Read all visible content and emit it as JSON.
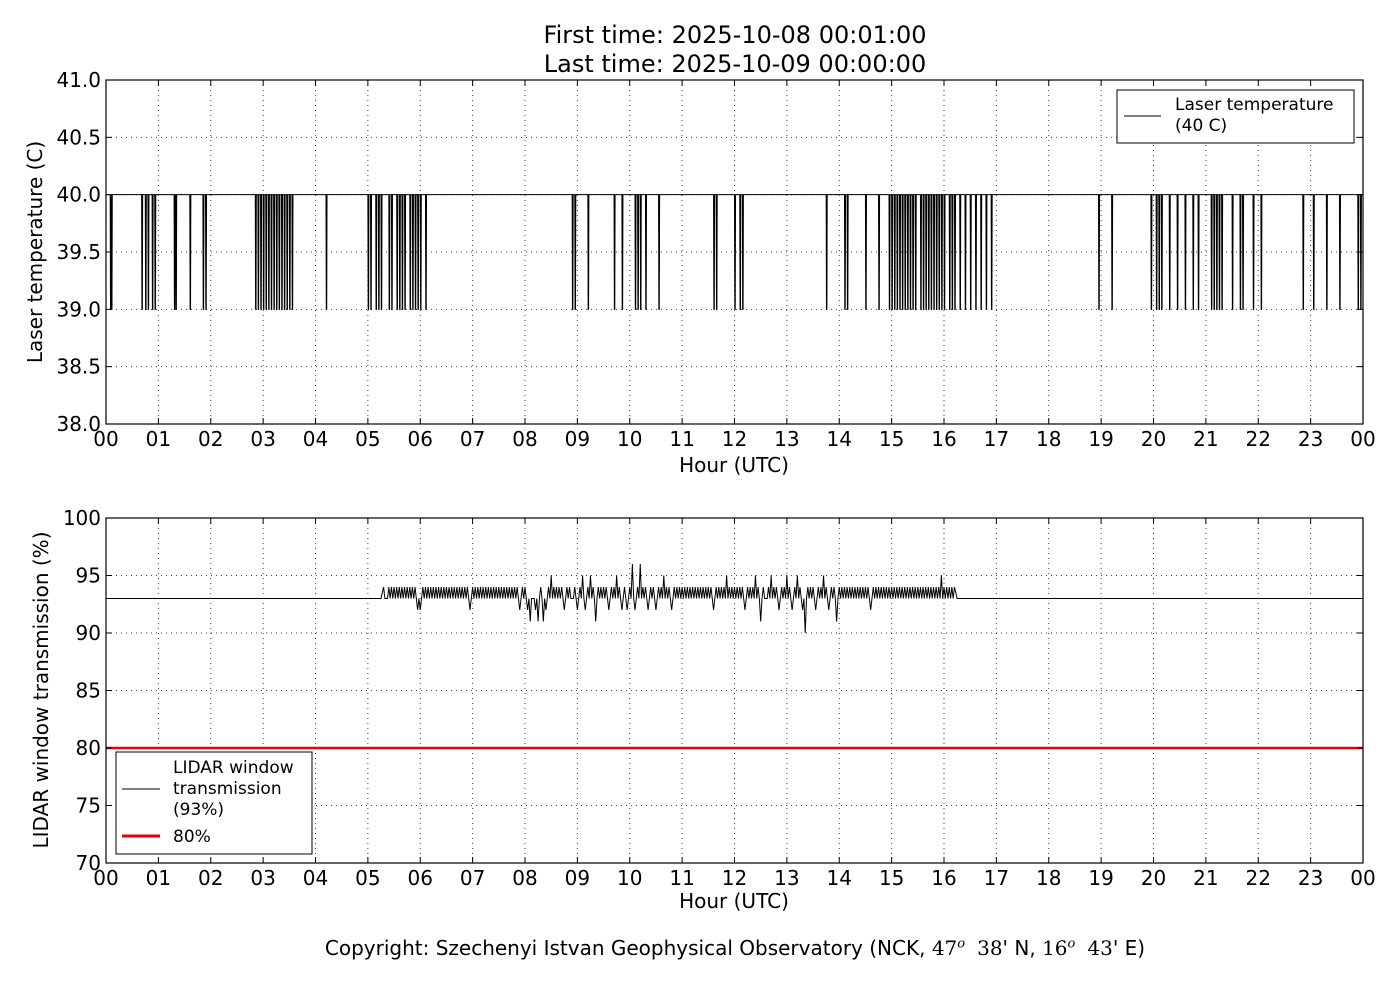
{
  "title": {
    "line1": "First time: 2025-10-08 00:01:00",
    "line2": "Last time: 2025-10-09 00:00:00"
  },
  "footer": {
    "prefix": "Copyright: Szechenyi Istvan Geophysical Observatory (NCK, ",
    "lat_deg": "47",
    "lat_deg_sup": "o",
    "lat_min": "38",
    "lat_suffix": "' N, ",
    "lon_deg": "16",
    "lon_deg_sup": "o",
    "lon_min": "43",
    "lon_suffix": "' E)"
  },
  "colors": {
    "series": "#000000",
    "threshold": "#e8000b",
    "grid": "#000000"
  },
  "chart_data": [
    {
      "type": "line",
      "xlabel": "Hour (UTC)",
      "ylabel": "Laser temperature (C)",
      "xlim": [
        0,
        24
      ],
      "ylim": [
        38.0,
        41.0
      ],
      "xticks": [
        0,
        1,
        2,
        3,
        4,
        5,
        6,
        7,
        8,
        9,
        10,
        11,
        12,
        13,
        14,
        15,
        16,
        17,
        18,
        19,
        20,
        21,
        22,
        23,
        24
      ],
      "xtick_labels": [
        "00",
        "01",
        "02",
        "03",
        "04",
        "05",
        "06",
        "07",
        "08",
        "09",
        "10",
        "11",
        "12",
        "13",
        "14",
        "15",
        "16",
        "17",
        "18",
        "19",
        "20",
        "21",
        "22",
        "23",
        "00"
      ],
      "yticks": [
        38.0,
        38.5,
        39.0,
        39.5,
        40.0,
        40.5,
        41.0
      ],
      "ytick_labels": [
        "38.0",
        "38.5",
        "39.0",
        "39.5",
        "40.0",
        "40.5",
        "41.0"
      ],
      "grid": true,
      "legend_position": "top-right",
      "series": [
        {
          "name": "Laser temperature\n(40 C)",
          "base_value": 40.0,
          "dip_value": 39.0,
          "dip_hours": [
            0.08,
            0.1,
            0.68,
            0.75,
            0.8,
            0.88,
            0.93,
            1.3,
            1.33,
            1.6,
            1.85,
            1.9,
            2.85,
            2.9,
            2.95,
            3.0,
            3.05,
            3.1,
            3.15,
            3.2,
            3.25,
            3.3,
            3.35,
            3.4,
            3.45,
            3.5,
            3.55,
            4.2,
            5.0,
            5.05,
            5.15,
            5.2,
            5.25,
            5.4,
            5.45,
            5.55,
            5.6,
            5.65,
            5.7,
            5.8,
            5.85,
            5.9,
            5.95,
            6.0,
            6.1,
            8.9,
            8.95,
            9.2,
            9.7,
            9.85,
            10.1,
            10.15,
            10.2,
            10.3,
            10.55,
            11.6,
            11.65,
            12.0,
            12.1,
            12.15,
            13.75,
            14.1,
            14.15,
            14.5,
            14.75,
            14.95,
            15.0,
            15.05,
            15.1,
            15.15,
            15.2,
            15.25,
            15.3,
            15.35,
            15.4,
            15.45,
            15.55,
            15.6,
            15.65,
            15.7,
            15.75,
            15.8,
            15.85,
            15.9,
            15.95,
            16.0,
            16.1,
            16.15,
            16.2,
            16.3,
            16.4,
            16.5,
            16.6,
            16.7,
            16.8,
            16.9,
            18.95,
            19.2,
            19.95,
            20.05,
            20.1,
            20.15,
            20.3,
            20.45,
            20.6,
            20.75,
            20.85,
            21.1,
            21.15,
            21.2,
            21.25,
            21.3,
            21.5,
            21.65,
            21.7,
            21.9,
            22.05,
            22.85,
            23.05,
            23.3,
            23.55,
            23.9,
            23.95
          ]
        }
      ]
    },
    {
      "type": "line",
      "xlabel": "Hour (UTC)",
      "ylabel": "LIDAR window transmission (%)",
      "xlim": [
        0,
        24
      ],
      "ylim": [
        70,
        100
      ],
      "xticks": [
        0,
        1,
        2,
        3,
        4,
        5,
        6,
        7,
        8,
        9,
        10,
        11,
        12,
        13,
        14,
        15,
        16,
        17,
        18,
        19,
        20,
        21,
        22,
        23,
        24
      ],
      "xtick_labels": [
        "00",
        "01",
        "02",
        "03",
        "04",
        "05",
        "06",
        "07",
        "08",
        "09",
        "10",
        "11",
        "12",
        "13",
        "14",
        "15",
        "16",
        "17",
        "18",
        "19",
        "20",
        "21",
        "22",
        "23",
        "00"
      ],
      "yticks": [
        70,
        75,
        80,
        85,
        90,
        95,
        100
      ],
      "ytick_labels": [
        "70",
        "75",
        "80",
        "85",
        "90",
        "95",
        "100"
      ],
      "grid": true,
      "legend_position": "lower-left",
      "series": [
        {
          "name": "LIDAR window\ntransmission\n(93%)",
          "base_value": 93,
          "active_range_hours": [
            5.25,
            16.25
          ],
          "noise_points": [
            [
              5.3,
              94
            ],
            [
              5.35,
              93
            ],
            [
              5.55,
              94
            ],
            [
              5.7,
              94
            ],
            [
              5.85,
              94
            ],
            [
              5.95,
              92
            ],
            [
              6.0,
              92
            ],
            [
              6.1,
              94
            ],
            [
              6.5,
              94
            ],
            [
              6.95,
              92
            ],
            [
              7.5,
              94
            ],
            [
              7.9,
              92
            ],
            [
              8.05,
              92
            ],
            [
              8.1,
              91
            ],
            [
              8.15,
              93
            ],
            [
              8.2,
              92
            ],
            [
              8.25,
              91
            ],
            [
              8.35,
              91
            ],
            [
              8.4,
              92
            ],
            [
              8.5,
              95
            ],
            [
              8.6,
              94
            ],
            [
              8.75,
              92
            ],
            [
              8.9,
              93
            ],
            [
              9.0,
              92
            ],
            [
              9.1,
              95
            ],
            [
              9.15,
              92
            ],
            [
              9.25,
              95
            ],
            [
              9.35,
              91
            ],
            [
              9.5,
              94
            ],
            [
              9.6,
              92
            ],
            [
              9.75,
              95
            ],
            [
              9.85,
              92
            ],
            [
              9.95,
              92
            ],
            [
              10.05,
              96
            ],
            [
              10.1,
              92
            ],
            [
              10.2,
              96
            ],
            [
              10.25,
              94
            ],
            [
              10.35,
              92
            ],
            [
              10.5,
              92
            ],
            [
              10.65,
              95
            ],
            [
              10.8,
              92
            ],
            [
              11.0,
              94
            ],
            [
              11.3,
              94
            ],
            [
              11.6,
              92
            ],
            [
              11.85,
              95
            ],
            [
              12.0,
              94
            ],
            [
              12.1,
              94
            ],
            [
              12.2,
              92
            ],
            [
              12.4,
              95
            ],
            [
              12.5,
              91
            ],
            [
              12.6,
              93
            ],
            [
              12.7,
              95
            ],
            [
              12.85,
              92
            ],
            [
              13.0,
              95
            ],
            [
              13.1,
              92
            ],
            [
              13.2,
              95
            ],
            [
              13.3,
              92
            ],
            [
              13.35,
              90
            ],
            [
              13.45,
              94
            ],
            [
              13.55,
              92
            ],
            [
              13.7,
              95
            ],
            [
              13.8,
              92
            ],
            [
              13.95,
              91
            ],
            [
              14.1,
              94
            ],
            [
              14.4,
              94
            ],
            [
              14.6,
              92
            ],
            [
              14.85,
              94
            ],
            [
              15.2,
              94
            ],
            [
              15.6,
              94
            ],
            [
              15.9,
              94
            ],
            [
              15.95,
              95
            ],
            [
              16.05,
              94
            ],
            [
              16.2,
              94
            ]
          ]
        },
        {
          "name": "80%",
          "constant_value": 80
        }
      ]
    }
  ]
}
